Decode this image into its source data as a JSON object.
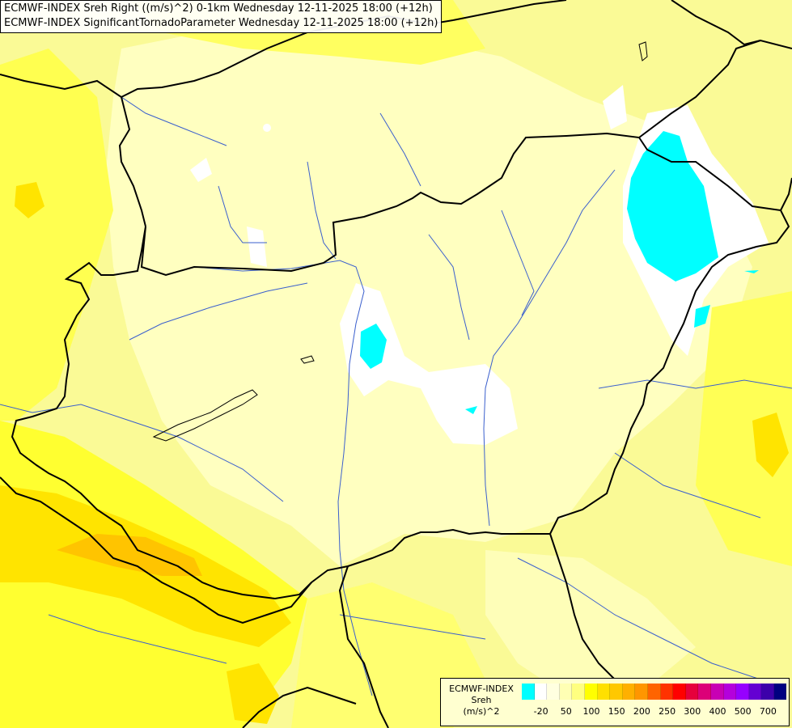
{
  "header": {
    "line1": "ECMWF-INDEX Sreh Right ((m/s)^2) 0-1km Wednesday 12-11-2025 18:00 (+12h)",
    "line2": "ECMWF-INDEX SignificantTornadoParameter Wednesday 12-11-2025 18:00 (+12h)"
  },
  "legend": {
    "line1": "ECMWF-INDEX",
    "line2": "Sreh",
    "line3": "(m/s)^2",
    "colors": [
      "#00ffff",
      "#ffffff",
      "#ffffe0",
      "#ffffb4",
      "#ffff80",
      "#ffff00",
      "#ffe000",
      "#ffc800",
      "#ffb000",
      "#ff9600",
      "#ff6400",
      "#ff3200",
      "#ff0000",
      "#e6003c",
      "#dc0078",
      "#c800b4",
      "#b400dc",
      "#9600ff",
      "#6400d2",
      "#3c00aa",
      "#000080"
    ],
    "ticks": [
      "-20",
      "50",
      "100",
      "150",
      "200",
      "250",
      "300",
      "400",
      "500",
      "700"
    ]
  },
  "map": {
    "colors": {
      "background": "#fafa96",
      "pale": "#ffffc0",
      "yellow": "#ffff50",
      "deep_yellow": "#ffe400",
      "orange": "#ffc400",
      "white": "#ffffff",
      "cyan": "#00ffff",
      "border": "#000000",
      "river": "#3a5fcd"
    }
  }
}
